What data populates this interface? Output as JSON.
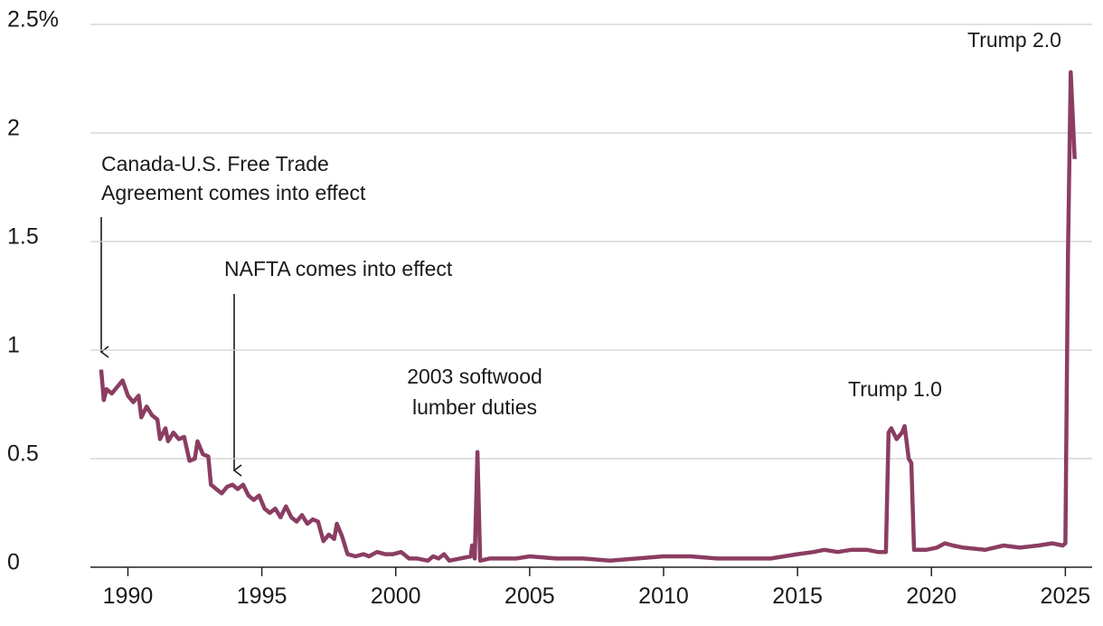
{
  "chart_data": {
    "type": "line",
    "x": [
      1989.0,
      1989.1,
      1989.2,
      1989.4,
      1989.6,
      1989.8,
      1990.0,
      1990.2,
      1990.4,
      1990.5,
      1990.7,
      1990.9,
      1991.1,
      1991.2,
      1991.4,
      1991.5,
      1991.7,
      1991.9,
      1992.1,
      1992.3,
      1992.5,
      1992.6,
      1992.8,
      1993.0,
      1993.1,
      1993.3,
      1993.5,
      1993.7,
      1993.9,
      1994.1,
      1994.3,
      1994.5,
      1994.7,
      1994.9,
      1995.1,
      1995.3,
      1995.5,
      1995.7,
      1995.9,
      1996.1,
      1996.3,
      1996.5,
      1996.7,
      1996.9,
      1997.1,
      1997.3,
      1997.5,
      1997.7,
      1997.8,
      1998.0,
      1998.2,
      1998.5,
      1998.8,
      1999.0,
      1999.3,
      1999.6,
      1999.9,
      2000.2,
      2000.5,
      2000.8,
      2001.2,
      2001.4,
      2001.6,
      2001.8,
      2002.0,
      2002.4,
      2002.8,
      2002.85,
      2002.95,
      2003.05,
      2003.15,
      2003.5,
      2004.0,
      2004.5,
      2005.0,
      2006.0,
      2007.0,
      2008.0,
      2009.0,
      2010.0,
      2011.0,
      2012.0,
      2013.0,
      2014.0,
      2015.0,
      2015.6,
      2016.0,
      2016.5,
      2017.0,
      2017.6,
      2018.0,
      2018.3,
      2018.4,
      2018.5,
      2018.7,
      2018.9,
      2019.0,
      2019.15,
      2019.25,
      2019.35,
      2019.8,
      2020.2,
      2020.5,
      2020.8,
      2021.2,
      2022.0,
      2022.7,
      2023.3,
      2024.0,
      2024.5,
      2024.9,
      2025.0,
      2025.1,
      2025.2,
      2025.35
    ],
    "series": [
      {
        "color": "#8b3d62",
        "values": [
          0.91,
          0.77,
          0.82,
          0.8,
          0.83,
          0.86,
          0.79,
          0.76,
          0.79,
          0.69,
          0.74,
          0.7,
          0.68,
          0.59,
          0.64,
          0.58,
          0.62,
          0.59,
          0.6,
          0.49,
          0.5,
          0.58,
          0.52,
          0.51,
          0.38,
          0.36,
          0.34,
          0.37,
          0.38,
          0.36,
          0.38,
          0.33,
          0.31,
          0.33,
          0.27,
          0.25,
          0.27,
          0.23,
          0.28,
          0.23,
          0.21,
          0.24,
          0.2,
          0.22,
          0.21,
          0.12,
          0.15,
          0.13,
          0.2,
          0.14,
          0.06,
          0.05,
          0.06,
          0.05,
          0.07,
          0.06,
          0.06,
          0.07,
          0.04,
          0.04,
          0.03,
          0.05,
          0.04,
          0.06,
          0.03,
          0.04,
          0.05,
          0.1,
          0.04,
          0.53,
          0.03,
          0.04,
          0.04,
          0.04,
          0.05,
          0.04,
          0.04,
          0.03,
          0.04,
          0.05,
          0.05,
          0.04,
          0.04,
          0.04,
          0.06,
          0.07,
          0.08,
          0.07,
          0.08,
          0.08,
          0.07,
          0.07,
          0.62,
          0.64,
          0.59,
          0.62,
          0.65,
          0.5,
          0.48,
          0.08,
          0.08,
          0.09,
          0.11,
          0.1,
          0.09,
          0.08,
          0.1,
          0.09,
          0.1,
          0.11,
          0.1,
          0.11,
          1.45,
          2.28,
          1.88
        ]
      }
    ],
    "xlim": [
      1988.6,
      2026
    ],
    "xticks": [
      1990,
      1995,
      2000,
      2005,
      2010,
      2015,
      2020,
      2025
    ],
    "ylim": [
      0,
      2.5
    ],
    "yticks": [
      0,
      0.5,
      1,
      1.5,
      2,
      {
        "value": 2.5,
        "label": "2.5%"
      }
    ],
    "grid": true,
    "annotations": [
      {
        "text": [
          "Canada-U.S. Free Trade",
          "Agreement comes into effect"
        ]
      },
      {
        "text": [
          "NAFTA comes into effect"
        ]
      },
      {
        "text": [
          "2003 softwood",
          "lumber duties"
        ]
      },
      {
        "text": [
          "Trump 1.0"
        ]
      },
      {
        "text": [
          "Trump 2.0"
        ]
      }
    ]
  }
}
